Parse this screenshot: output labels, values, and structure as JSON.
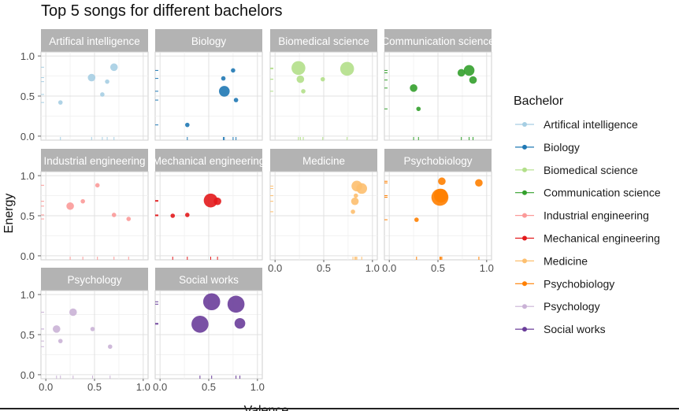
{
  "chart_data": {
    "type": "scatter",
    "title": "Top 5 songs for different bachelors",
    "xlabel": "Valence",
    "ylabel": "Energy",
    "xlim": [
      -0.05,
      1.05
    ],
    "ylim": [
      -0.05,
      1.05
    ],
    "x_ticks": [
      "0.0",
      "0.5",
      "1.0"
    ],
    "y_ticks": [
      "0.0",
      "0.5",
      "1.0"
    ],
    "grid": true,
    "legend": {
      "title": "Bachelor",
      "placement": "right"
    },
    "series": [
      {
        "name": "Artifical intelligence",
        "color": "#a6cee3",
        "points": [
          {
            "x": 0.15,
            "y": 0.42,
            "size": 1
          },
          {
            "x": 0.47,
            "y": 0.73,
            "size": 2
          },
          {
            "x": 0.58,
            "y": 0.52,
            "size": 1
          },
          {
            "x": 0.63,
            "y": 0.68,
            "size": 1
          },
          {
            "x": 0.7,
            "y": 0.86,
            "size": 2
          }
        ]
      },
      {
        "name": "Biology",
        "color": "#1f78b4",
        "points": [
          {
            "x": 0.28,
            "y": 0.14,
            "size": 1
          },
          {
            "x": 0.65,
            "y": 0.72,
            "size": 1
          },
          {
            "x": 0.66,
            "y": 0.56,
            "size": 3
          },
          {
            "x": 0.75,
            "y": 0.82,
            "size": 1
          },
          {
            "x": 0.78,
            "y": 0.45,
            "size": 1
          }
        ]
      },
      {
        "name": "Biomedical science",
        "color": "#b2df8a",
        "points": [
          {
            "x": 0.24,
            "y": 0.85,
            "size": 4
          },
          {
            "x": 0.26,
            "y": 0.71,
            "size": 2
          },
          {
            "x": 0.29,
            "y": 0.56,
            "size": 1
          },
          {
            "x": 0.49,
            "y": 0.71,
            "size": 1
          },
          {
            "x": 0.74,
            "y": 0.84,
            "size": 4
          }
        ]
      },
      {
        "name": "Communication science",
        "color": "#33a02c",
        "points": [
          {
            "x": 0.25,
            "y": 0.6,
            "size": 2
          },
          {
            "x": 0.3,
            "y": 0.34,
            "size": 1
          },
          {
            "x": 0.74,
            "y": 0.79,
            "size": 2
          },
          {
            "x": 0.82,
            "y": 0.82,
            "size": 3
          },
          {
            "x": 0.86,
            "y": 0.7,
            "size": 2
          }
        ]
      },
      {
        "name": "Industrial engineering",
        "color": "#fb9a99",
        "points": [
          {
            "x": 0.25,
            "y": 0.62,
            "size": 2
          },
          {
            "x": 0.38,
            "y": 0.68,
            "size": 1
          },
          {
            "x": 0.53,
            "y": 0.88,
            "size": 1
          },
          {
            "x": 0.7,
            "y": 0.51,
            "size": 1
          },
          {
            "x": 0.85,
            "y": 0.46,
            "size": 1
          }
        ]
      },
      {
        "name": "Mechanical engineering",
        "color": "#e31a1c",
        "points": [
          {
            "x": 0.13,
            "y": 0.5,
            "size": 1
          },
          {
            "x": 0.28,
            "y": 0.51,
            "size": 1
          },
          {
            "x": 0.52,
            "y": 0.69,
            "size": 4
          },
          {
            "x": 0.59,
            "y": 0.68,
            "size": 2
          }
        ]
      },
      {
        "name": "Medicine",
        "color": "#fdbf6f",
        "points": [
          {
            "x": 0.8,
            "y": 0.55,
            "size": 1
          },
          {
            "x": 0.82,
            "y": 0.68,
            "size": 2
          },
          {
            "x": 0.83,
            "y": 0.75,
            "size": 1
          },
          {
            "x": 0.84,
            "y": 0.87,
            "size": 3
          },
          {
            "x": 0.89,
            "y": 0.84,
            "size": 3
          }
        ]
      },
      {
        "name": "Psychobiology",
        "color": "#ff7f00",
        "points": [
          {
            "x": 0.28,
            "y": 0.45,
            "size": 1
          },
          {
            "x": 0.52,
            "y": 0.73,
            "size": 5
          },
          {
            "x": 0.53,
            "y": 0.75,
            "size": 4
          },
          {
            "x": 0.54,
            "y": 0.93,
            "size": 2
          },
          {
            "x": 0.92,
            "y": 0.91,
            "size": 2
          }
        ]
      },
      {
        "name": "Psychology",
        "color": "#cab2d6",
        "points": [
          {
            "x": 0.11,
            "y": 0.57,
            "size": 2
          },
          {
            "x": 0.15,
            "y": 0.42,
            "size": 1
          },
          {
            "x": 0.28,
            "y": 0.78,
            "size": 2
          },
          {
            "x": 0.48,
            "y": 0.57,
            "size": 1
          },
          {
            "x": 0.66,
            "y": 0.35,
            "size": 1
          }
        ]
      },
      {
        "name": "Social works",
        "color": "#6a3d9a",
        "points": [
          {
            "x": 0.41,
            "y": 0.63,
            "size": 5
          },
          {
            "x": 0.53,
            "y": 0.91,
            "size": 5
          },
          {
            "x": 0.78,
            "y": 0.88,
            "size": 5
          },
          {
            "x": 0.82,
            "y": 0.64,
            "size": 3
          }
        ]
      }
    ]
  }
}
